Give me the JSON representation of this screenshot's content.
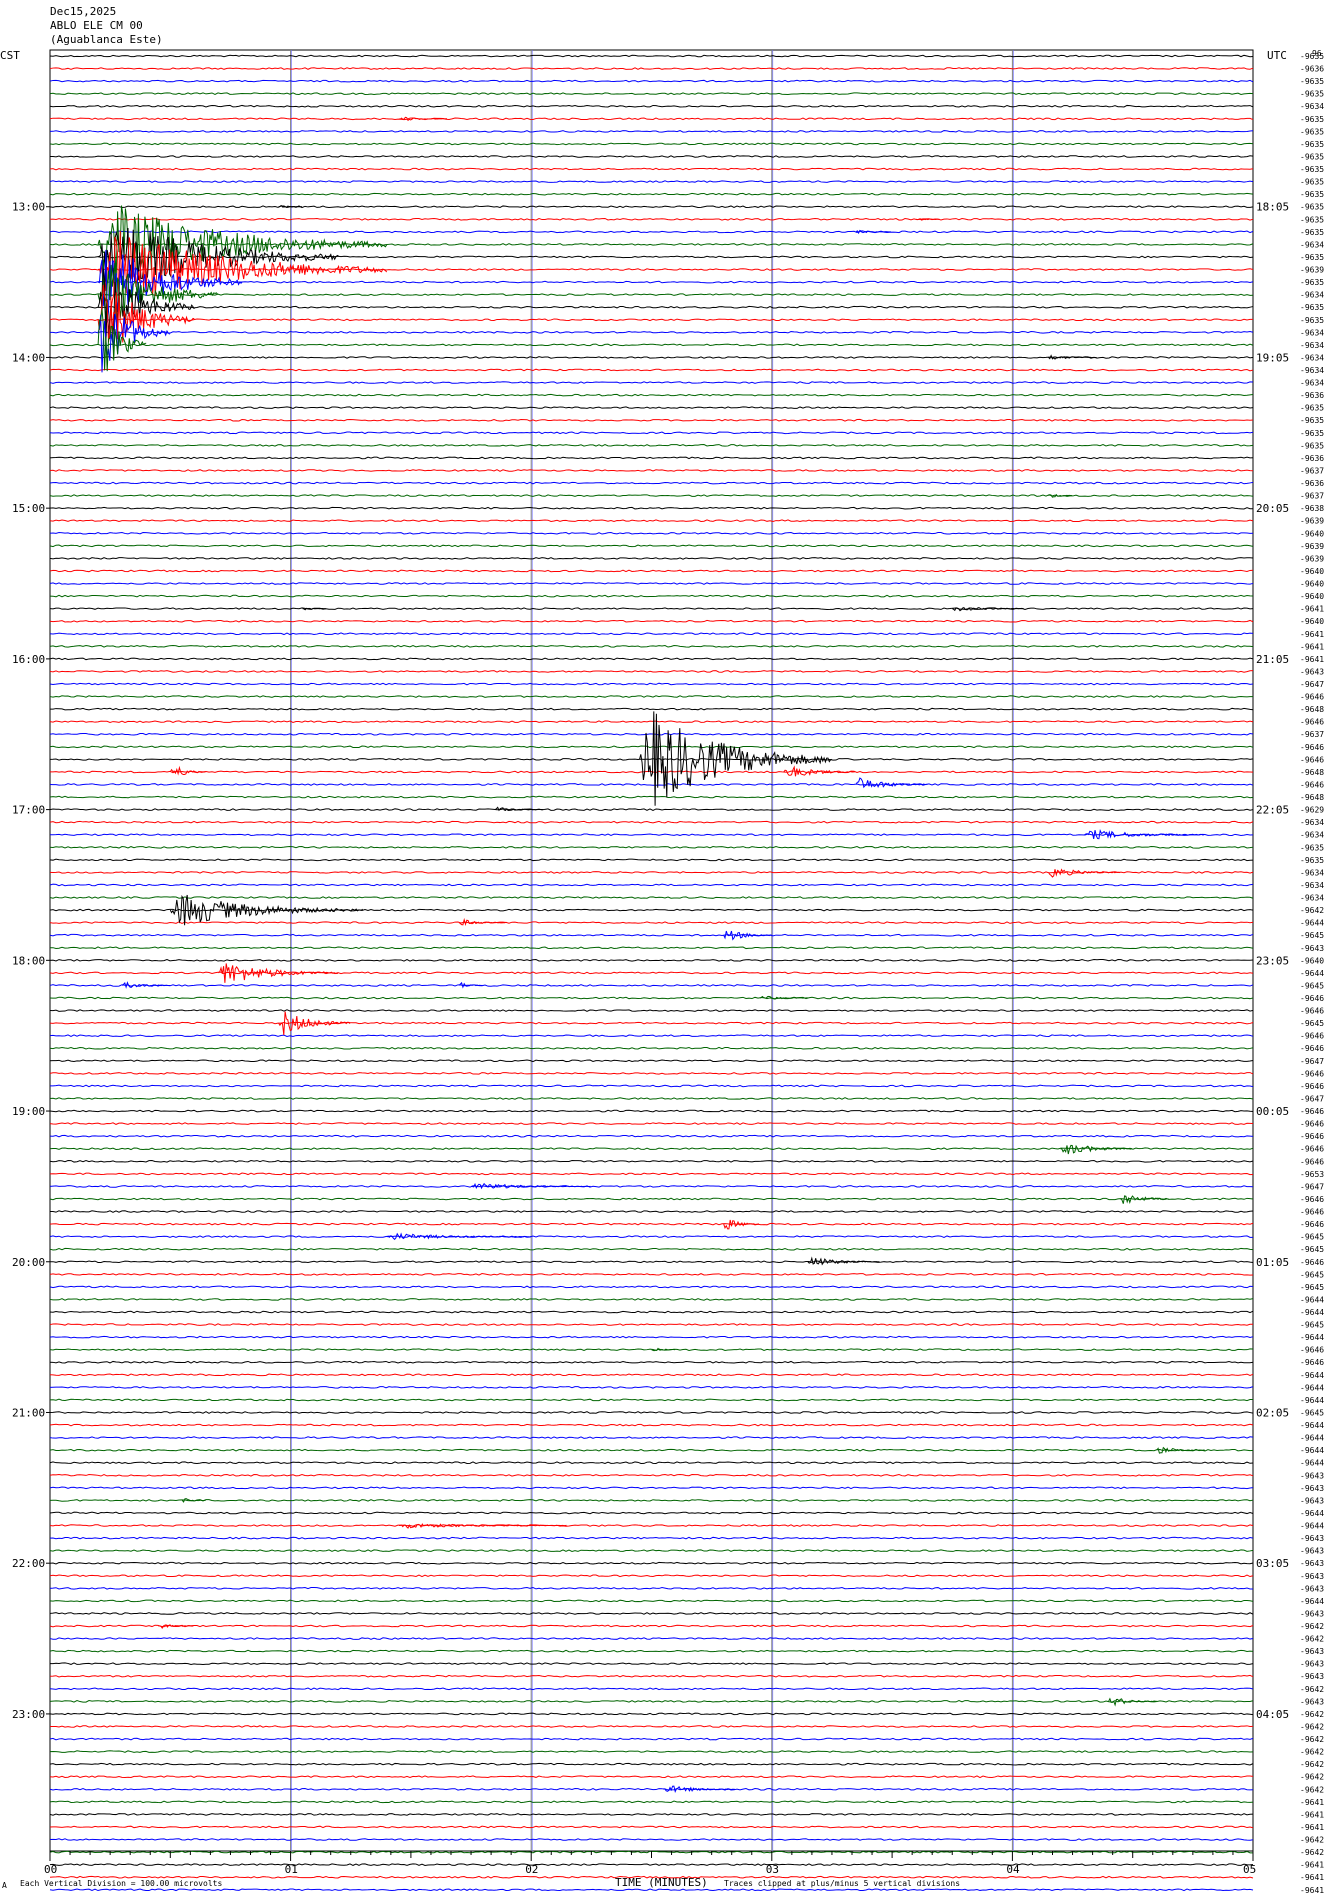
{
  "header": {
    "date": "Dec15,2025",
    "channel": "ABLO ELE CM 00",
    "site": "(Aguablanca Este)",
    "left_zone": "CST",
    "right_zone": "UTC",
    "baseline_top": "96"
  },
  "time_labels_left": [
    "13:00",
    "14:00",
    "15:00",
    "16:00",
    "17:00",
    "18:00",
    "19:00",
    "20:00",
    "21:00",
    "22:00",
    "23:00"
  ],
  "time_labels_right": [
    "18:05",
    "19:05",
    "20:05",
    "21:05",
    "22:05",
    "23:05",
    "00:05",
    "01:05",
    "02:05",
    "03:05",
    "04:05"
  ],
  "footer": {
    "division": "Each Vertical Division =  100.00 microvolts",
    "axis_title": "TIME (MINUTES)",
    "clip_note": "Traces clipped at plus/minus 5 vertical divisions",
    "corner_mark": "A"
  },
  "colors": {
    "cycle": [
      "#000000",
      "#ff0000",
      "#0000ff",
      "#006400"
    ],
    "grid_black": "#808080",
    "grid_blue": "#6a6aff"
  },
  "chart_data": {
    "type": "helicorder",
    "x_ticks": [
      "00",
      "01",
      "02",
      "03",
      "04",
      "05"
    ],
    "xlim": [
      0,
      5
    ],
    "xlabel": "TIME (MINUTES)",
    "minutes_per_line": 5,
    "color_order": [
      "black",
      "red",
      "blue",
      "green"
    ],
    "baselines": [
      "-9635",
      "-9636",
      "-9635",
      "-9635",
      "-9634",
      "-9635",
      "-9635",
      "-9635",
      "-9635",
      "-9635",
      "-9635",
      "-9635",
      "-9635",
      "-9635",
      "-9635",
      "-9634",
      "-9635",
      "-9639",
      "-9635",
      "-9634",
      "-9635",
      "-9635",
      "-9634",
      "-9634",
      "-9634",
      "-9634",
      "-9634",
      "-9636",
      "-9635",
      "-9635",
      "-9635",
      "-9635",
      "-9636",
      "-9637",
      "-9636",
      "-9637",
      "-9638",
      "-9639",
      "-9640",
      "-9639",
      "-9639",
      "-9640",
      "-9640",
      "-9640",
      "-9641",
      "-9640",
      "-9641",
      "-9641",
      "-9641",
      "-9643",
      "-9647",
      "-9646",
      "-9648",
      "-9646",
      "-9637",
      "-9646",
      "-9646",
      "-9648",
      "-9646",
      "-9648",
      "-9629",
      "-9634",
      "-9634",
      "-9635",
      "-9635",
      "-9634",
      "-9634",
      "-9634",
      "-9642",
      "-9644",
      "-9645",
      "-9643",
      "-9640",
      "-9644",
      "-9645",
      "-9646",
      "-9646",
      "-9645",
      "-9646",
      "-9646",
      "-9647",
      "-9646",
      "-9646",
      "-9647",
      "-9646",
      "-9646",
      "-9646",
      "-9646",
      "-9646",
      "-9653",
      "-9647",
      "-9646",
      "-9646",
      "-9646",
      "-9645",
      "-9645",
      "-9646",
      "-9645",
      "-9645",
      "-9644",
      "-9644",
      "-9645",
      "-9644",
      "-9646",
      "-9646",
      "-9644",
      "-9644",
      "-9644",
      "-9645",
      "-9644",
      "-9644",
      "-9644",
      "-9644",
      "-9643",
      "-9643",
      "-9643",
      "-9644",
      "-9644",
      "-9643",
      "-9643",
      "-9643",
      "-9643",
      "-9643",
      "-9644",
      "-9643",
      "-9642",
      "-9642",
      "-9643",
      "-9643",
      "-9643",
      "-9642",
      "-9643",
      "-9642",
      "-9642",
      "-9642",
      "-9642",
      "-9642",
      "-9642",
      "-9642",
      "-9641",
      "-9641",
      "-9641",
      "-9642",
      "-9642",
      "-9641",
      "-9641",
      "-9641",
      "-9641",
      "-9641",
      "-9641",
      "-9641",
      "-9641",
      "-9640"
    ],
    "events": [
      {
        "trace": 5,
        "minute": 1.45,
        "dur": 0.2,
        "amp": 3
      },
      {
        "trace": 12,
        "minute": 0.95,
        "dur": 0.1,
        "amp": 2
      },
      {
        "trace": 13,
        "minute": 3.6,
        "dur": 0.1,
        "amp": 2
      },
      {
        "trace": 14,
        "minute": 3.35,
        "dur": 0.15,
        "amp": 2
      },
      {
        "trace": 15,
        "minute": 0.2,
        "dur": 1.2,
        "amp": 50
      },
      {
        "trace": 16,
        "minute": 0.2,
        "dur": 1.0,
        "amp": 50
      },
      {
        "trace": 17,
        "minute": 0.2,
        "dur": 1.2,
        "amp": 50
      },
      {
        "trace": 18,
        "minute": 0.2,
        "dur": 0.6,
        "amp": 50
      },
      {
        "trace": 19,
        "minute": 0.2,
        "dur": 0.5,
        "amp": 50
      },
      {
        "trace": 20,
        "minute": 0.2,
        "dur": 0.4,
        "amp": 50
      },
      {
        "trace": 21,
        "minute": 0.2,
        "dur": 0.4,
        "amp": 50
      },
      {
        "trace": 22,
        "minute": 0.2,
        "dur": 0.3,
        "amp": 50
      },
      {
        "trace": 23,
        "minute": 0.2,
        "dur": 0.2,
        "amp": 50
      },
      {
        "trace": 24,
        "minute": 4.15,
        "dur": 0.2,
        "amp": 3
      },
      {
        "trace": 35,
        "minute": 4.15,
        "dur": 0.1,
        "amp": 3
      },
      {
        "trace": 44,
        "minute": 1.05,
        "dur": 0.1,
        "amp": 2
      },
      {
        "trace": 44,
        "minute": 3.75,
        "dur": 0.3,
        "amp": 3
      },
      {
        "trace": 56,
        "minute": 2.45,
        "dur": 0.8,
        "amp": 60
      },
      {
        "trace": 57,
        "minute": 0.5,
        "dur": 0.15,
        "amp": 10
      },
      {
        "trace": 57,
        "minute": 3.05,
        "dur": 0.3,
        "amp": 8
      },
      {
        "trace": 58,
        "minute": 3.35,
        "dur": 0.3,
        "amp": 8
      },
      {
        "trace": 60,
        "minute": 1.85,
        "dur": 0.2,
        "amp": 3
      },
      {
        "trace": 62,
        "minute": 4.3,
        "dur": 0.5,
        "amp": 6
      },
      {
        "trace": 65,
        "minute": 4.15,
        "dur": 0.3,
        "amp": 6
      },
      {
        "trace": 68,
        "minute": 0.5,
        "dur": 0.8,
        "amp": 20
      },
      {
        "trace": 69,
        "minute": 1.7,
        "dur": 0.2,
        "amp": 4
      },
      {
        "trace": 70,
        "minute": 2.8,
        "dur": 0.2,
        "amp": 8
      },
      {
        "trace": 73,
        "minute": 0.7,
        "dur": 0.5,
        "amp": 14
      },
      {
        "trace": 74,
        "minute": 0.3,
        "dur": 0.2,
        "amp": 4
      },
      {
        "trace": 74,
        "minute": 1.7,
        "dur": 0.1,
        "amp": 4
      },
      {
        "trace": 75,
        "minute": 2.95,
        "dur": 0.2,
        "amp": 3
      },
      {
        "trace": 77,
        "minute": 0.95,
        "dur": 0.3,
        "amp": 16
      },
      {
        "trace": 87,
        "minute": 4.2,
        "dur": 0.3,
        "amp": 8
      },
      {
        "trace": 90,
        "minute": 1.75,
        "dur": 0.5,
        "amp": 4
      },
      {
        "trace": 91,
        "minute": 4.45,
        "dur": 0.2,
        "amp": 8
      },
      {
        "trace": 93,
        "minute": 2.8,
        "dur": 0.15,
        "amp": 8
      },
      {
        "trace": 94,
        "minute": 1.4,
        "dur": 0.6,
        "amp": 4
      },
      {
        "trace": 96,
        "minute": 3.15,
        "dur": 0.3,
        "amp": 6
      },
      {
        "trace": 103,
        "minute": 2.5,
        "dur": 0.1,
        "amp": 3
      },
      {
        "trace": 111,
        "minute": 4.6,
        "dur": 0.2,
        "amp": 4
      },
      {
        "trace": 115,
        "minute": 0.55,
        "dur": 0.1,
        "amp": 3
      },
      {
        "trace": 117,
        "minute": 1.45,
        "dur": 0.7,
        "amp": 3
      },
      {
        "trace": 125,
        "minute": 0.45,
        "dur": 0.15,
        "amp": 3
      },
      {
        "trace": 131,
        "minute": 4.4,
        "dur": 0.2,
        "amp": 6
      },
      {
        "trace": 138,
        "minute": 2.55,
        "dur": 0.3,
        "amp": 5
      }
    ]
  }
}
